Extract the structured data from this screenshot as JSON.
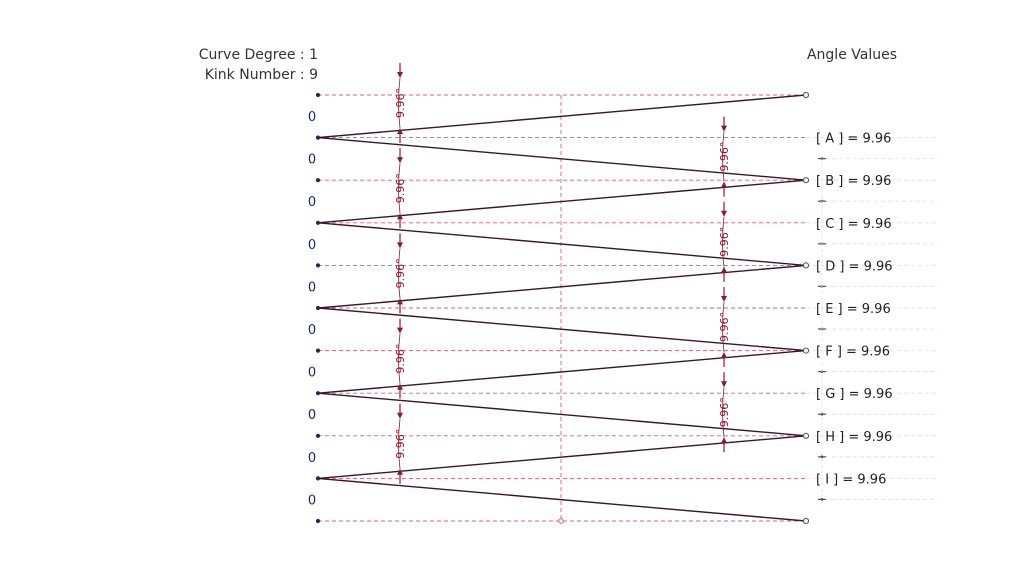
{
  "header": {
    "curve_degree": "Curve Degree : 1",
    "kink_number": "Kink Number  : 9",
    "angle_values_title": "Angle Values"
  },
  "segment_labels": [
    "0",
    "0",
    "0",
    "0",
    "0",
    "0",
    "0",
    "0",
    "0",
    "0"
  ],
  "angle_label": "9.96°",
  "angle_values": [
    {
      "label": "[ A ] = 9.96"
    },
    {
      "label": "[ B ] = 9.96"
    },
    {
      "label": "[ C ] = 9.96"
    },
    {
      "label": "[ D ] = 9.96"
    },
    {
      "label": "[ E ] = 9.96"
    },
    {
      "label": "[ F ] = 9.96"
    },
    {
      "label": "[ G ] = 9.96"
    },
    {
      "label": "[ H ] = 9.96"
    },
    {
      "label": "[ I ] = 9.96"
    }
  ],
  "colors": {
    "curve": "#3a1530",
    "dashed": "#d9607a",
    "angle": "#8b1a2a",
    "node": "#1c2a5c",
    "light_dash": "#e4e4e4"
  }
}
